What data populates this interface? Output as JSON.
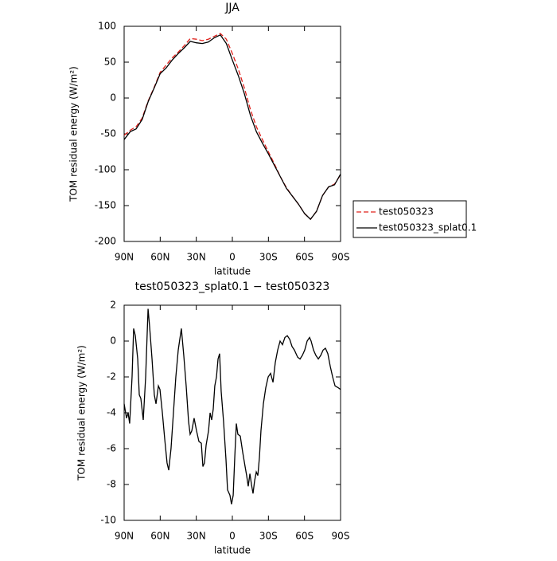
{
  "chart_data": [
    {
      "type": "line",
      "title": "JJA",
      "xlabel": "latitude",
      "ylabel": "TOM residual energy (W/m²)",
      "x": [
        90,
        85,
        80,
        75,
        70,
        65,
        60,
        55,
        50,
        45,
        40,
        35,
        30,
        25,
        20,
        15,
        10,
        5,
        0,
        -5,
        -10,
        -15,
        -20,
        -25,
        -30,
        -35,
        -40,
        -45,
        -50,
        -55,
        -60,
        -65,
        -70,
        -75,
        -80,
        -85,
        -90
      ],
      "series": [
        {
          "name": "test050323",
          "color": "#e0201b",
          "dash": true,
          "values": [
            -52,
            -45,
            -40,
            -28,
            -4,
            15,
            36,
            46,
            56,
            64,
            73,
            83,
            82,
            80,
            82,
            86,
            90,
            82,
            62,
            40,
            14,
            -16,
            -40,
            -58,
            -75,
            -92,
            -110,
            -125,
            -137,
            -148,
            -161,
            -169,
            -158,
            -136,
            -124,
            -120,
            -107
          ]
        },
        {
          "name": "test050323_splat0.1",
          "color": "#000000",
          "dash": false,
          "values": [
            -58,
            -47,
            -43,
            -30,
            -5,
            14,
            34,
            42,
            53,
            62,
            70,
            79,
            77,
            76,
            78,
            84,
            88,
            76,
            53,
            31,
            6,
            -24,
            -47,
            -63,
            -78,
            -94,
            -110,
            -126,
            -137,
            -148,
            -161,
            -169,
            -158,
            -136,
            -124,
            -121,
            -106
          ]
        }
      ],
      "xlim": [
        90,
        -90
      ],
      "xticks": [
        {
          "value": 90,
          "label": "90N"
        },
        {
          "value": 60,
          "label": "60N"
        },
        {
          "value": 30,
          "label": "30N"
        },
        0,
        {
          "value": -30,
          "label": "30S"
        },
        {
          "value": -60,
          "label": "60S"
        },
        {
          "value": -90,
          "label": "90S"
        }
      ],
      "ylim": [
        -200,
        100
      ],
      "yticks": [
        100,
        50,
        0,
        -50,
        -100,
        -150,
        -200
      ],
      "legend": "outside-right"
    },
    {
      "type": "line",
      "title": "test050323_splat0.1 − test050323",
      "xlabel": "latitude",
      "ylabel": "TOM residual energy (W/m²)",
      "x": [
        90,
        88.0,
        86.7,
        85.4,
        83.4,
        82.1,
        80.7,
        78.7,
        77.4,
        76.1,
        74.1,
        72.1,
        70.1,
        68.8,
        66.8,
        64.9,
        63.5,
        61.5,
        60.2,
        58.2,
        56.2,
        54.3,
        52.9,
        51.0,
        49.0,
        47.0,
        45.0,
        42.4,
        40.4,
        38.4,
        36.4,
        35.1,
        33.7,
        31.8,
        29.8,
        27.8,
        25.8,
        24.5,
        23.2,
        21.8,
        19.8,
        18.5,
        17.2,
        15.9,
        14.6,
        13.2,
        11.9,
        10.6,
        9.3,
        7.3,
        5.3,
        4.0,
        2.0,
        0.7,
        -0.7,
        -2.0,
        -3.3,
        -4.6,
        -6.6,
        -8.6,
        -10.6,
        -11.9,
        -13.2,
        -14.6,
        -15.9,
        -17.2,
        -18.5,
        -19.9,
        -21.2,
        -22.5,
        -23.8,
        -25.8,
        -27.8,
        -29.8,
        -31.8,
        -33.8,
        -35.7,
        -37.7,
        -39.7,
        -41.7,
        -43.7,
        -45.7,
        -47.7,
        -49.6,
        -51.6,
        -54.3,
        -56.3,
        -58.2,
        -60.2,
        -62.2,
        -64.2,
        -65.5,
        -67.5,
        -69.5,
        -71.5,
        -73.5,
        -75.5,
        -77.4,
        -79.4,
        -81.4,
        -83.4,
        -85.4,
        -88.0,
        -90
      ],
      "series": [
        {
          "name": "test050323_splat0.1 − test050323",
          "color": "#000000",
          "dash": false,
          "values": [
            -3.5,
            -4.3,
            -4.0,
            -4.6,
            -2,
            0.7,
            0.3,
            -1,
            -3,
            -3.2,
            -4.4,
            -2,
            1.8,
            0.8,
            -1,
            -3,
            -3.5,
            -2.5,
            -2.7,
            -4,
            -5.5,
            -6.8,
            -7.2,
            -6,
            -4,
            -2,
            -0.5,
            0.7,
            -0.8,
            -2.5,
            -4.5,
            -5.2,
            -5,
            -4.3,
            -5,
            -5.6,
            -5.7,
            -7,
            -6.8,
            -5.8,
            -5,
            -4,
            -4.4,
            -3.8,
            -2.5,
            -2,
            -1,
            -0.7,
            -2.8,
            -4.5,
            -6.6,
            -8.3,
            -8.6,
            -9.1,
            -8.6,
            -6.5,
            -4.6,
            -5.2,
            -5.3,
            -6.2,
            -7,
            -7.5,
            -8.1,
            -7.4,
            -8,
            -8.5,
            -7.8,
            -7.3,
            -7.5,
            -6.5,
            -5,
            -3.5,
            -2.6,
            -2,
            -1.8,
            -2.3,
            -1.2,
            -0.5,
            0,
            -0.2,
            0.2,
            0.3,
            0.1,
            -0.3,
            -0.5,
            -0.9,
            -1,
            -0.8,
            -0.5,
            0,
            0.2,
            0,
            -0.5,
            -0.8,
            -1,
            -0.8,
            -0.5,
            -0.4,
            -0.7,
            -1.4,
            -2,
            -2.5,
            -2.6,
            -2.7
          ]
        }
      ],
      "xlim": [
        90,
        -90
      ],
      "xticks": [
        {
          "value": 90,
          "label": "90N"
        },
        {
          "value": 60,
          "label": "60N"
        },
        {
          "value": 30,
          "label": "30N"
        },
        0,
        {
          "value": -30,
          "label": "30S"
        },
        {
          "value": -60,
          "label": "60S"
        },
        {
          "value": -90,
          "label": "90S"
        }
      ],
      "ylim": [
        -10,
        2
      ],
      "yticks": [
        2,
        0,
        -2,
        -4,
        -6,
        -8,
        -10
      ]
    }
  ]
}
